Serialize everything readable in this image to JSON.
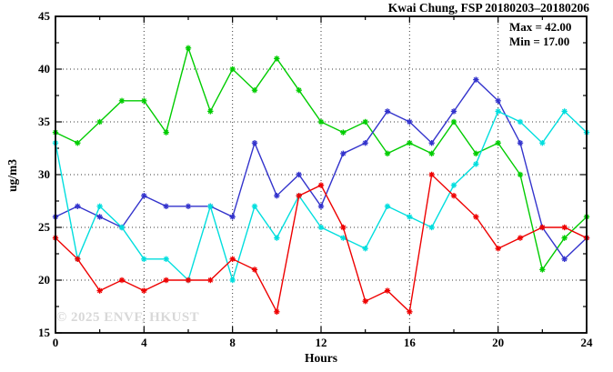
{
  "title": "Kwai Chung, FSP 20180203–20180206",
  "annotation": {
    "max_label": "Max = 42.00",
    "min_label": "Min = 17.00"
  },
  "watermark": "© 2025  ENVF, HKUST",
  "chart_data": {
    "type": "line",
    "title": "Kwai Chung, FSP 20180203–20180206",
    "xlabel": "Hours",
    "ylabel": "ug/m3",
    "xlim": [
      0,
      24
    ],
    "ylim": [
      15,
      45
    ],
    "x_major_ticks": [
      0,
      4,
      8,
      12,
      16,
      20,
      24
    ],
    "x_minor_step": 2,
    "y_major_ticks": [
      15,
      20,
      25,
      30,
      35,
      40,
      45
    ],
    "y_minor_step": 2.5,
    "grid": true,
    "legend_position": "none",
    "marker": "asterisk",
    "x": [
      0,
      1,
      2,
      3,
      4,
      5,
      6,
      7,
      8,
      9,
      10,
      11,
      12,
      13,
      14,
      15,
      16,
      17,
      18,
      19,
      20,
      21,
      22,
      23,
      24
    ],
    "series": [
      {
        "name": "green-series",
        "color": "#00cc00",
        "values": [
          34,
          33,
          35,
          37,
          37,
          34,
          42,
          36,
          40,
          38,
          41,
          38,
          35,
          34,
          35,
          32,
          33,
          32,
          35,
          32,
          33,
          30,
          21,
          24,
          26
        ]
      },
      {
        "name": "blue-series",
        "color": "#3333cc",
        "values": [
          26,
          27,
          26,
          25,
          28,
          27,
          27,
          27,
          26,
          33,
          28,
          30,
          27,
          32,
          33,
          36,
          35,
          33,
          36,
          39,
          37,
          33,
          25,
          22,
          24
        ]
      },
      {
        "name": "cyan-series",
        "color": "#00dede",
        "values": [
          33,
          22,
          27,
          25,
          22,
          22,
          20,
          27,
          20,
          27,
          24,
          28,
          25,
          24,
          23,
          27,
          26,
          25,
          29,
          31,
          36,
          35,
          33,
          36,
          34
        ]
      },
      {
        "name": "red-series",
        "color": "#ee0000",
        "values": [
          24,
          22,
          19,
          20,
          19,
          20,
          20,
          20,
          22,
          21,
          17,
          28,
          29,
          25,
          18,
          19,
          17,
          30,
          28,
          26,
          23,
          24,
          25,
          25,
          24
        ]
      }
    ],
    "stats": {
      "max": 42.0,
      "min": 17.0
    }
  }
}
